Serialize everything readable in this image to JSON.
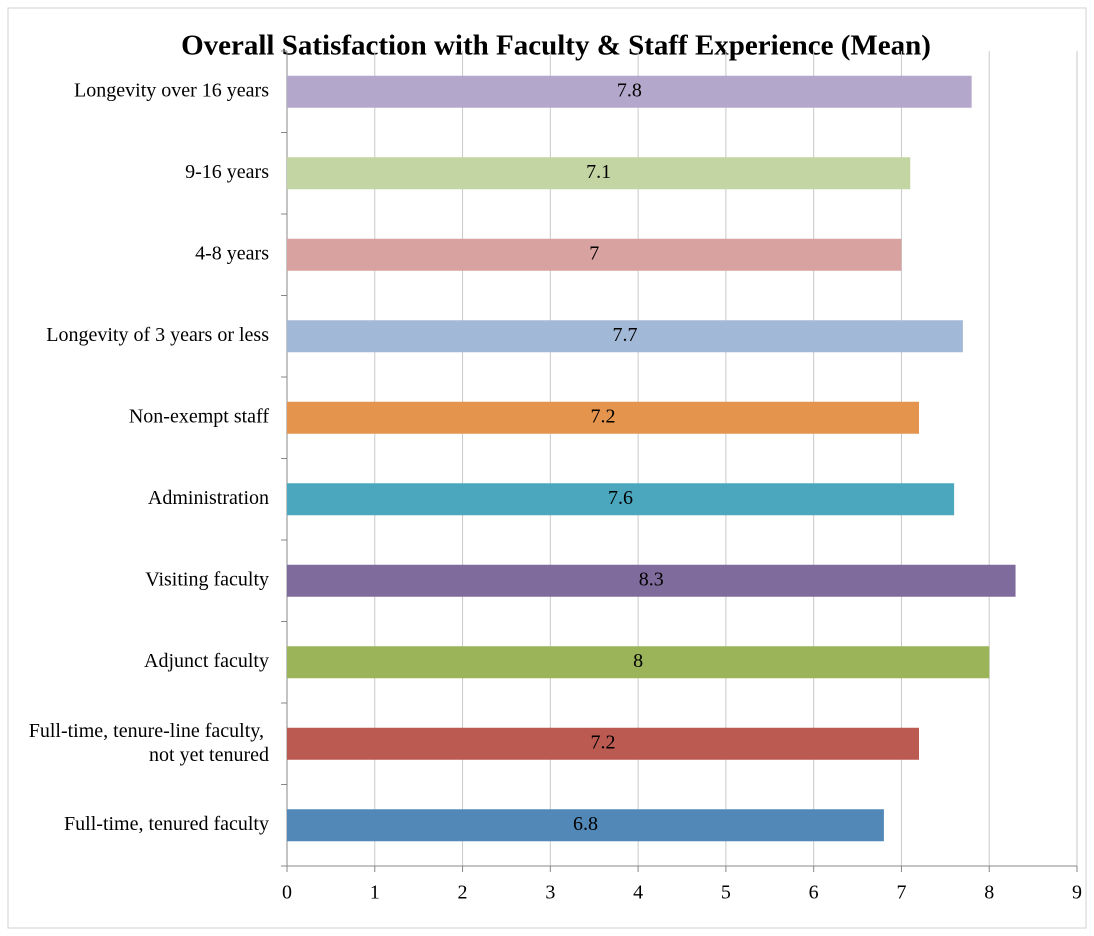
{
  "chart_data": {
    "type": "bar",
    "orientation": "horizontal",
    "title": "Overall Satisfaction with Faculty & Staff Experience (Mean)",
    "categories": [
      "Longevity over 16 years",
      "9-16 years",
      "4-8 years",
      "Longevity of 3 years or less",
      "Non-exempt staff",
      "Administration",
      "Visiting faculty",
      "Adjunct faculty",
      "Full-time, tenure-line faculty, not yet tenured",
      "Full-time, tenured faculty"
    ],
    "values": [
      7.8,
      7.1,
      7,
      7.7,
      7.2,
      7.6,
      8.3,
      8,
      7.2,
      6.8
    ],
    "colors": [
      "#b3a8cb",
      "#c3d5a3",
      "#d8a2a1",
      "#a2b8d7",
      "#e4944c",
      "#4ba7be",
      "#806b9d",
      "#9bb45a",
      "#bb5a51",
      "#5188b8"
    ],
    "xlim": [
      0,
      9
    ],
    "xticks": [
      0,
      1,
      2,
      3,
      4,
      5,
      6,
      7,
      8,
      9
    ],
    "grid": true
  }
}
